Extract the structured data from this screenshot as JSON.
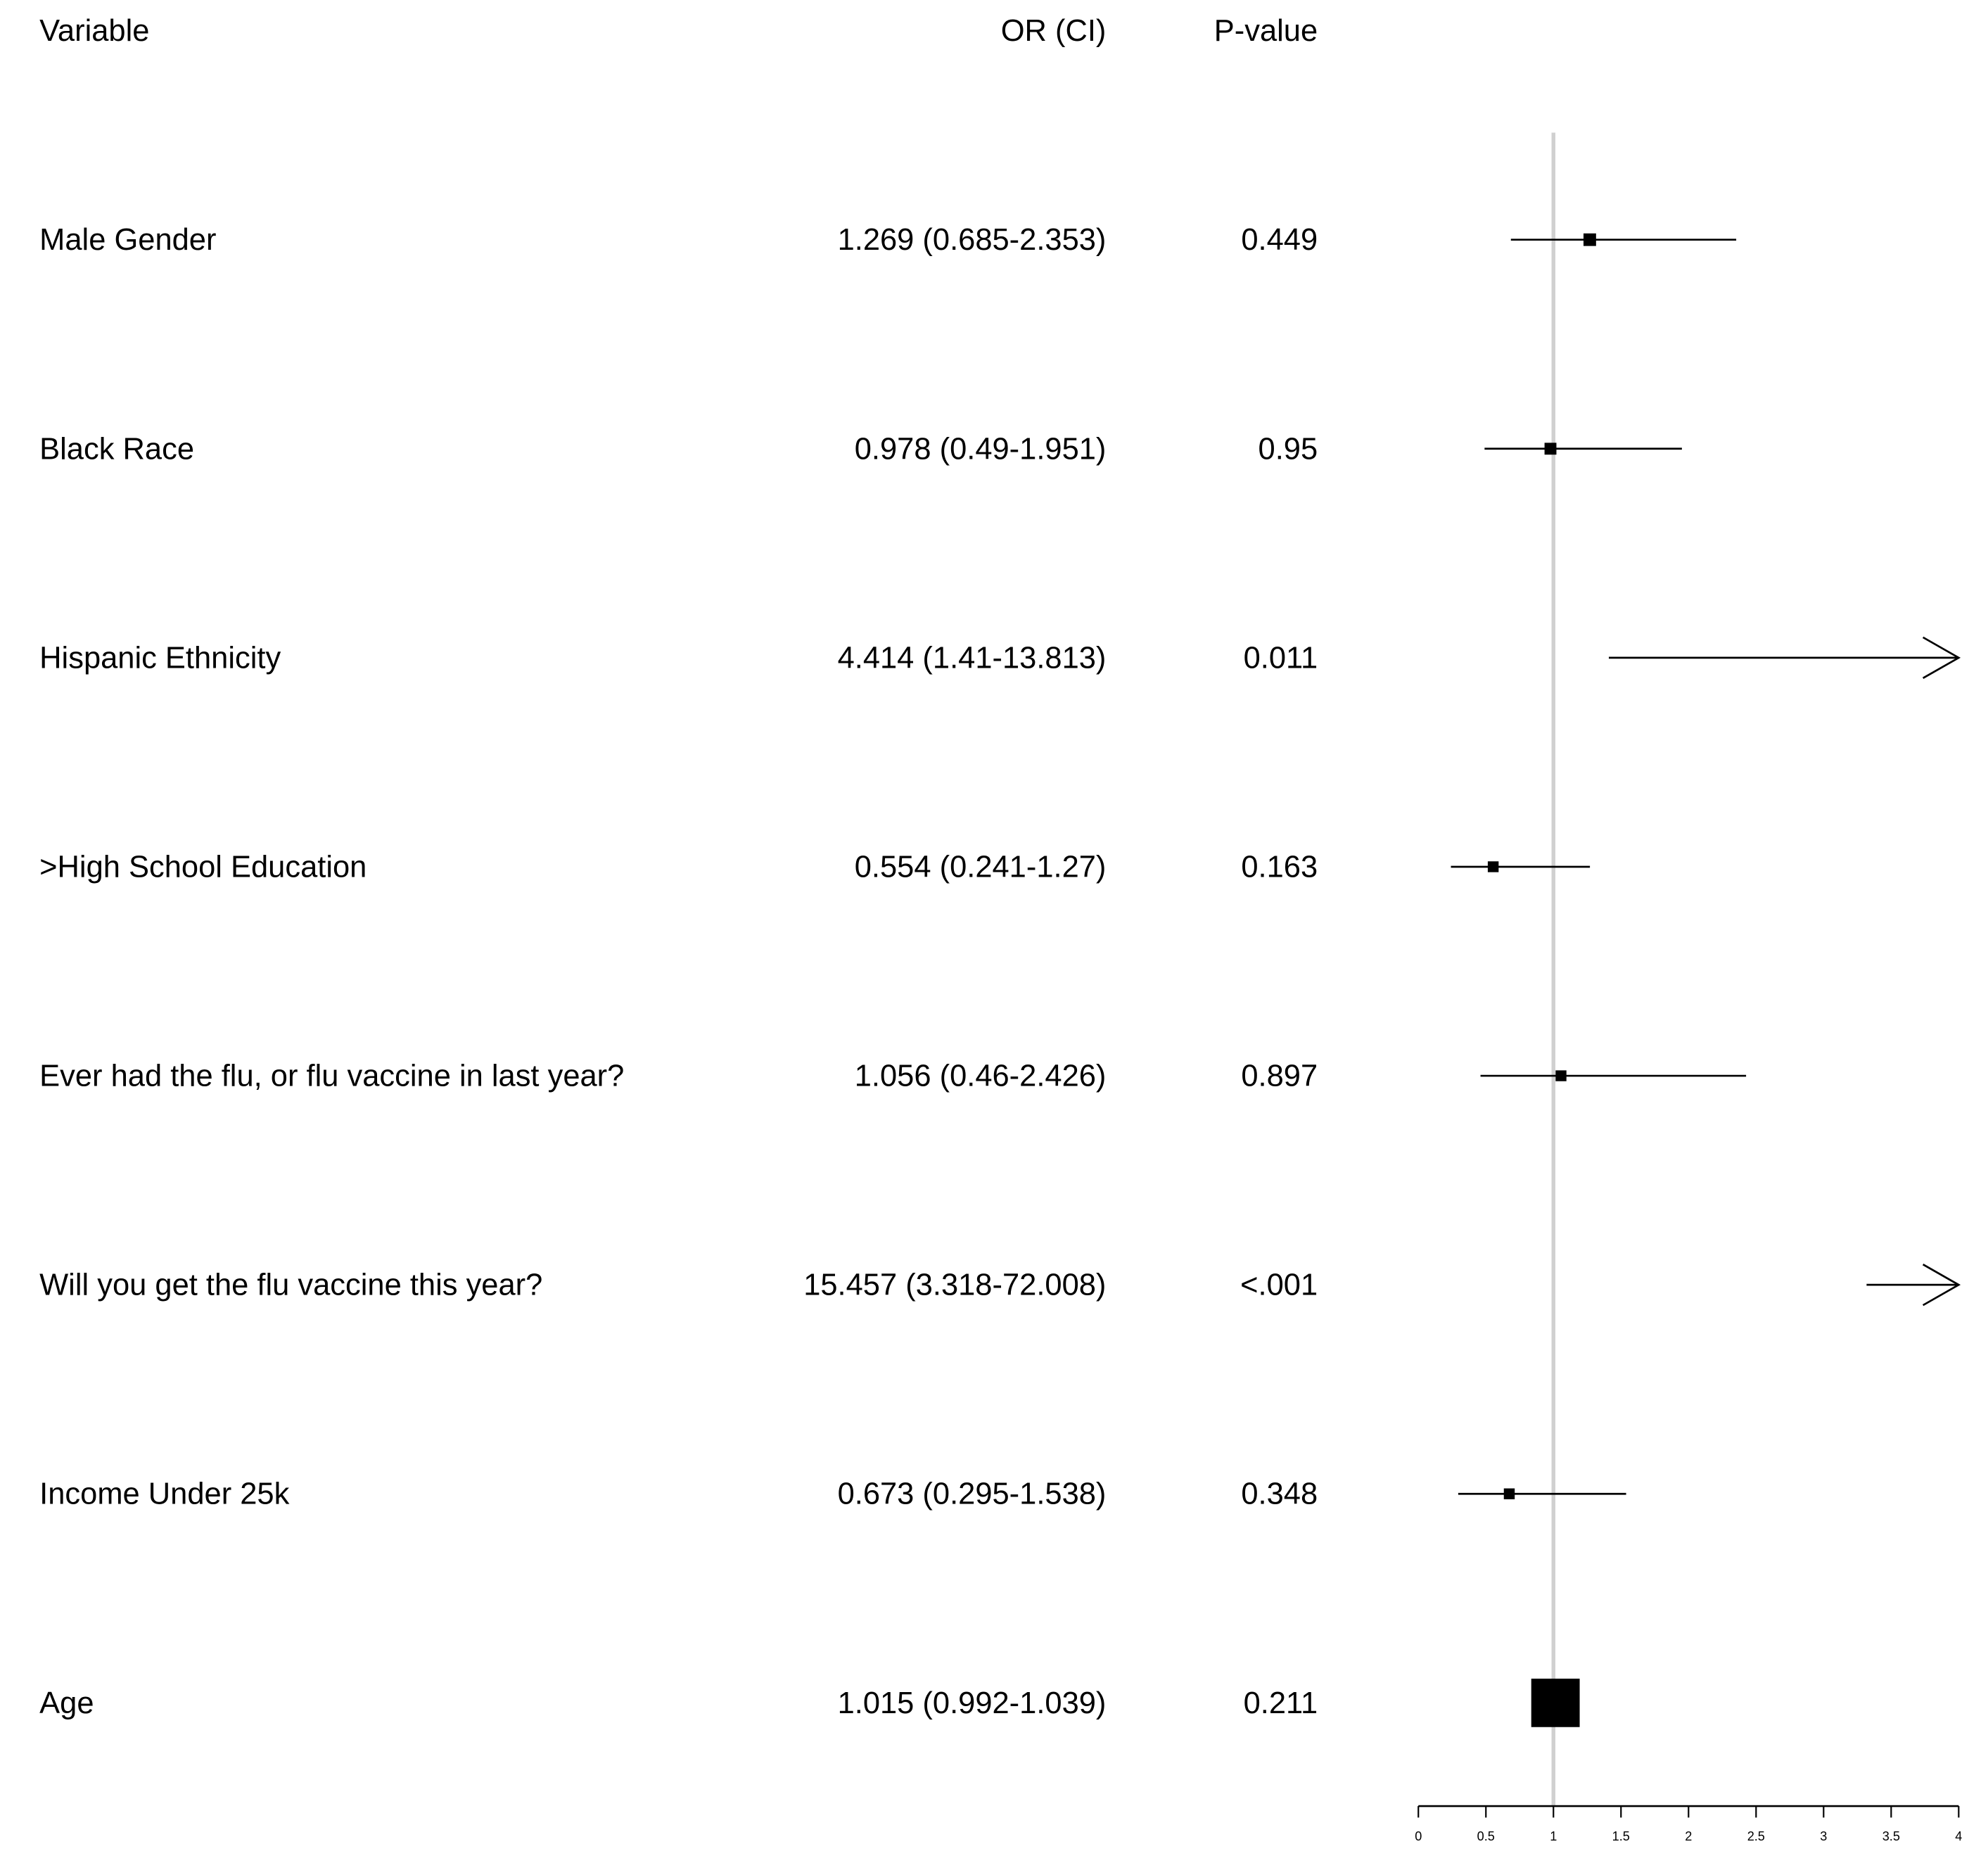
{
  "chart_data": {
    "type": "forest",
    "columns": {
      "variable": "Variable",
      "or_ci": "OR (CI)",
      "p": "P-value"
    },
    "rows": [
      {
        "variable": "Male Gender",
        "or_ci": "1.269 (0.685-2.353)",
        "p": "0.449",
        "or": 1.269,
        "lower": 0.685,
        "upper": 2.353
      },
      {
        "variable": "Black Race",
        "or_ci": "0.978 (0.49-1.951)",
        "p": "0.95",
        "or": 0.978,
        "lower": 0.49,
        "upper": 1.951
      },
      {
        "variable": "Hispanic Ethnicity",
        "or_ci": "4.414 (1.41-13.813)",
        "p": "0.011",
        "or": 4.414,
        "lower": 1.41,
        "upper": 13.813
      },
      {
        "variable": ">High School Education",
        "or_ci": "0.554 (0.241-1.27)",
        "p": "0.163",
        "or": 0.554,
        "lower": 0.241,
        "upper": 1.27
      },
      {
        "variable": "Ever had the flu, or flu vaccine in last year?",
        "or_ci": "1.056 (0.46-2.426)",
        "p": "0.897",
        "or": 1.056,
        "lower": 0.46,
        "upper": 2.426
      },
      {
        "variable": "Will you get the flu vaccine this year?",
        "or_ci": "15.457 (3.318-72.008)",
        "p": "<.001",
        "or": 15.457,
        "lower": 3.318,
        "upper": 72.008
      },
      {
        "variable": "Income Under 25k",
        "or_ci": "0.673 (0.295-1.538)",
        "p": "0.348",
        "or": 0.673,
        "lower": 0.295,
        "upper": 1.538
      },
      {
        "variable": "Age",
        "or_ci": "1.015 (0.992-1.039)",
        "p": "0.211",
        "or": 1.015,
        "lower": 0.992,
        "upper": 1.039
      }
    ],
    "xlim": [
      0,
      4
    ],
    "xticks": [
      "0",
      "0.5",
      "1",
      "1.5",
      "2",
      "2.5",
      "3",
      "3.5",
      "4"
    ],
    "reference_line": 1,
    "colors": {
      "marks": "#000000",
      "reference_line": "#d0d0d0"
    }
  }
}
